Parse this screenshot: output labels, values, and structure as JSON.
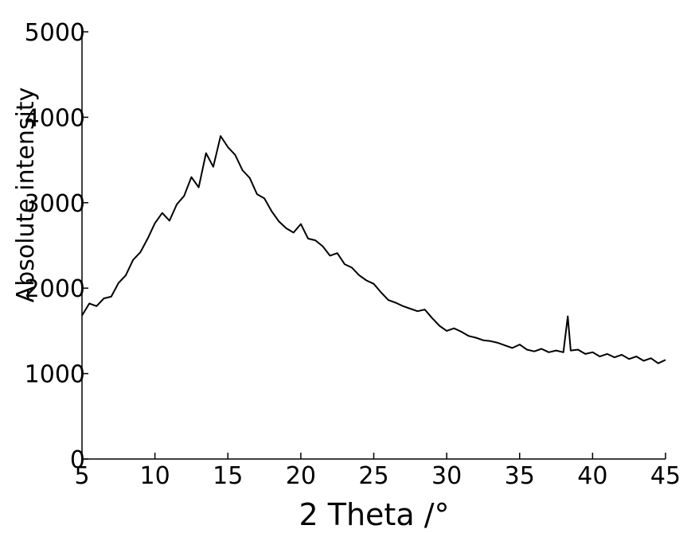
{
  "chart_data": {
    "type": "line",
    "xlabel": "2 Theta /°",
    "ylabel": "Absolute intensity",
    "x": [
      5,
      5.5,
      6,
      6.5,
      7,
      7.5,
      8,
      8.5,
      9,
      9.5,
      10,
      10.5,
      11,
      11.5,
      12,
      12.5,
      13,
      13.5,
      14,
      14.5,
      15,
      15.5,
      16,
      16.5,
      17,
      17.5,
      18,
      18.5,
      19,
      19.5,
      20,
      20.5,
      21,
      21.5,
      22,
      22.5,
      23,
      23.5,
      24,
      24.5,
      25,
      25.5,
      26,
      26.5,
      27,
      27.5,
      28,
      28.5,
      29,
      29.5,
      30,
      30.5,
      31,
      31.5,
      32,
      32.5,
      33,
      33.5,
      34,
      34.5,
      35,
      35.5,
      36,
      36.5,
      37,
      37.5,
      38,
      38.3,
      38.5,
      39,
      39.5,
      40,
      40.5,
      41,
      41.5,
      42,
      42.5,
      43,
      43.5,
      44,
      44.5,
      45
    ],
    "series": [
      {
        "color": "#000000",
        "values": [
          1680,
          1820,
          1790,
          1880,
          1900,
          2060,
          2150,
          2330,
          2420,
          2580,
          2760,
          2880,
          2790,
          2980,
          3080,
          3300,
          3180,
          3580,
          3420,
          3780,
          3650,
          3560,
          3380,
          3290,
          3100,
          3050,
          2900,
          2780,
          2700,
          2650,
          2750,
          2580,
          2560,
          2490,
          2380,
          2410,
          2280,
          2240,
          2150,
          2090,
          2050,
          1950,
          1860,
          1830,
          1790,
          1760,
          1730,
          1750,
          1650,
          1560,
          1500,
          1530,
          1490,
          1440,
          1420,
          1390,
          1380,
          1360,
          1330,
          1300,
          1340,
          1280,
          1260,
          1290,
          1250,
          1270,
          1250,
          1670,
          1270,
          1280,
          1230,
          1250,
          1200,
          1230,
          1190,
          1220,
          1170,
          1200,
          1150,
          1180,
          1120,
          1160
        ]
      }
    ],
    "xlim": [
      5,
      45
    ],
    "xticks": [
      5,
      10,
      15,
      20,
      25,
      30,
      35,
      40,
      45
    ],
    "ylim": [
      0,
      5000
    ],
    "yticks": [
      0,
      1000,
      2000,
      3000,
      4000,
      5000
    ]
  }
}
